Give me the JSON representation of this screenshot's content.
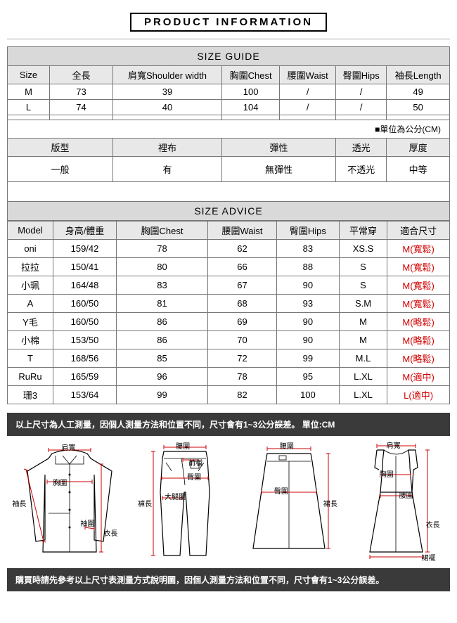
{
  "title": "PRODUCT INFORMATION",
  "sizeGuide": {
    "heading": "SIZE GUIDE",
    "columns": [
      "Size",
      "全長",
      "肩寬Shoulder width",
      "胸圍Chest",
      "腰圍Waist",
      "臀圍Hips",
      "袖長Length"
    ],
    "rows": [
      [
        "M",
        "73",
        "39",
        "100",
        "/",
        "/",
        "49"
      ],
      [
        "L",
        "74",
        "40",
        "104",
        "/",
        "/",
        "50"
      ]
    ],
    "unitNote": "■單位為公分(CM)"
  },
  "attributes": {
    "columns": [
      "版型",
      "裡布",
      "彈性",
      "透光",
      "厚度"
    ],
    "values": [
      "一般",
      "有",
      "無彈性",
      "不透光",
      "中等"
    ]
  },
  "sizeAdvice": {
    "heading": "SIZE ADVICE",
    "columns": [
      "Model",
      "身高/體重",
      "胸圍Chest",
      "腰圍Waist",
      "臀圍Hips",
      "平常穿",
      "適合尺寸"
    ],
    "rows": [
      {
        "c": [
          "oni",
          "159/42",
          "78",
          "62",
          "83",
          "XS.S"
        ],
        "fit": "M(寬鬆)"
      },
      {
        "c": [
          "拉拉",
          "150/41",
          "80",
          "66",
          "88",
          "S"
        ],
        "fit": "M(寬鬆)"
      },
      {
        "c": [
          "小珮",
          "164/48",
          "83",
          "67",
          "90",
          "S"
        ],
        "fit": "M(寬鬆)"
      },
      {
        "c": [
          "A",
          "160/50",
          "81",
          "68",
          "93",
          "S.M"
        ],
        "fit": "M(寬鬆)"
      },
      {
        "c": [
          "Y毛",
          "160/50",
          "86",
          "69",
          "90",
          "M"
        ],
        "fit": "M(略鬆)"
      },
      {
        "c": [
          "小棉",
          "153/50",
          "86",
          "70",
          "90",
          "M"
        ],
        "fit": "M(略鬆)"
      },
      {
        "c": [
          "T",
          "168/56",
          "85",
          "72",
          "99",
          "M.L"
        ],
        "fit": "M(略鬆)"
      },
      {
        "c": [
          "RuRu",
          "165/59",
          "96",
          "78",
          "95",
          "L.XL"
        ],
        "fit": "M(適中)"
      },
      {
        "c": [
          "珊3",
          "153/64",
          "99",
          "82",
          "100",
          "L.XL"
        ],
        "fit": "L(適中)"
      }
    ]
  },
  "noteTop": "以上尺寸為人工測量，因個人測量方法和位置不同，尺寸會有1~3公分誤差。 單位:CM",
  "noteBottom": "購買時請先參考以上尺寸表測量方式說明圖，因個人測量方法和位置不同，尺寸會有1~3公分誤差。",
  "diagramLabels": {
    "shoulder": "肩寬",
    "chest": "胸圍",
    "sleeve": "袖長",
    "cuff": "袖圍",
    "length": "衣長",
    "waist": "腰圍",
    "hip": "臀圍",
    "thigh": "大腿圍",
    "frontRise": "前檔",
    "pantLength": "褲長",
    "skirtLength": "裙長",
    "hem": "裙襬"
  }
}
